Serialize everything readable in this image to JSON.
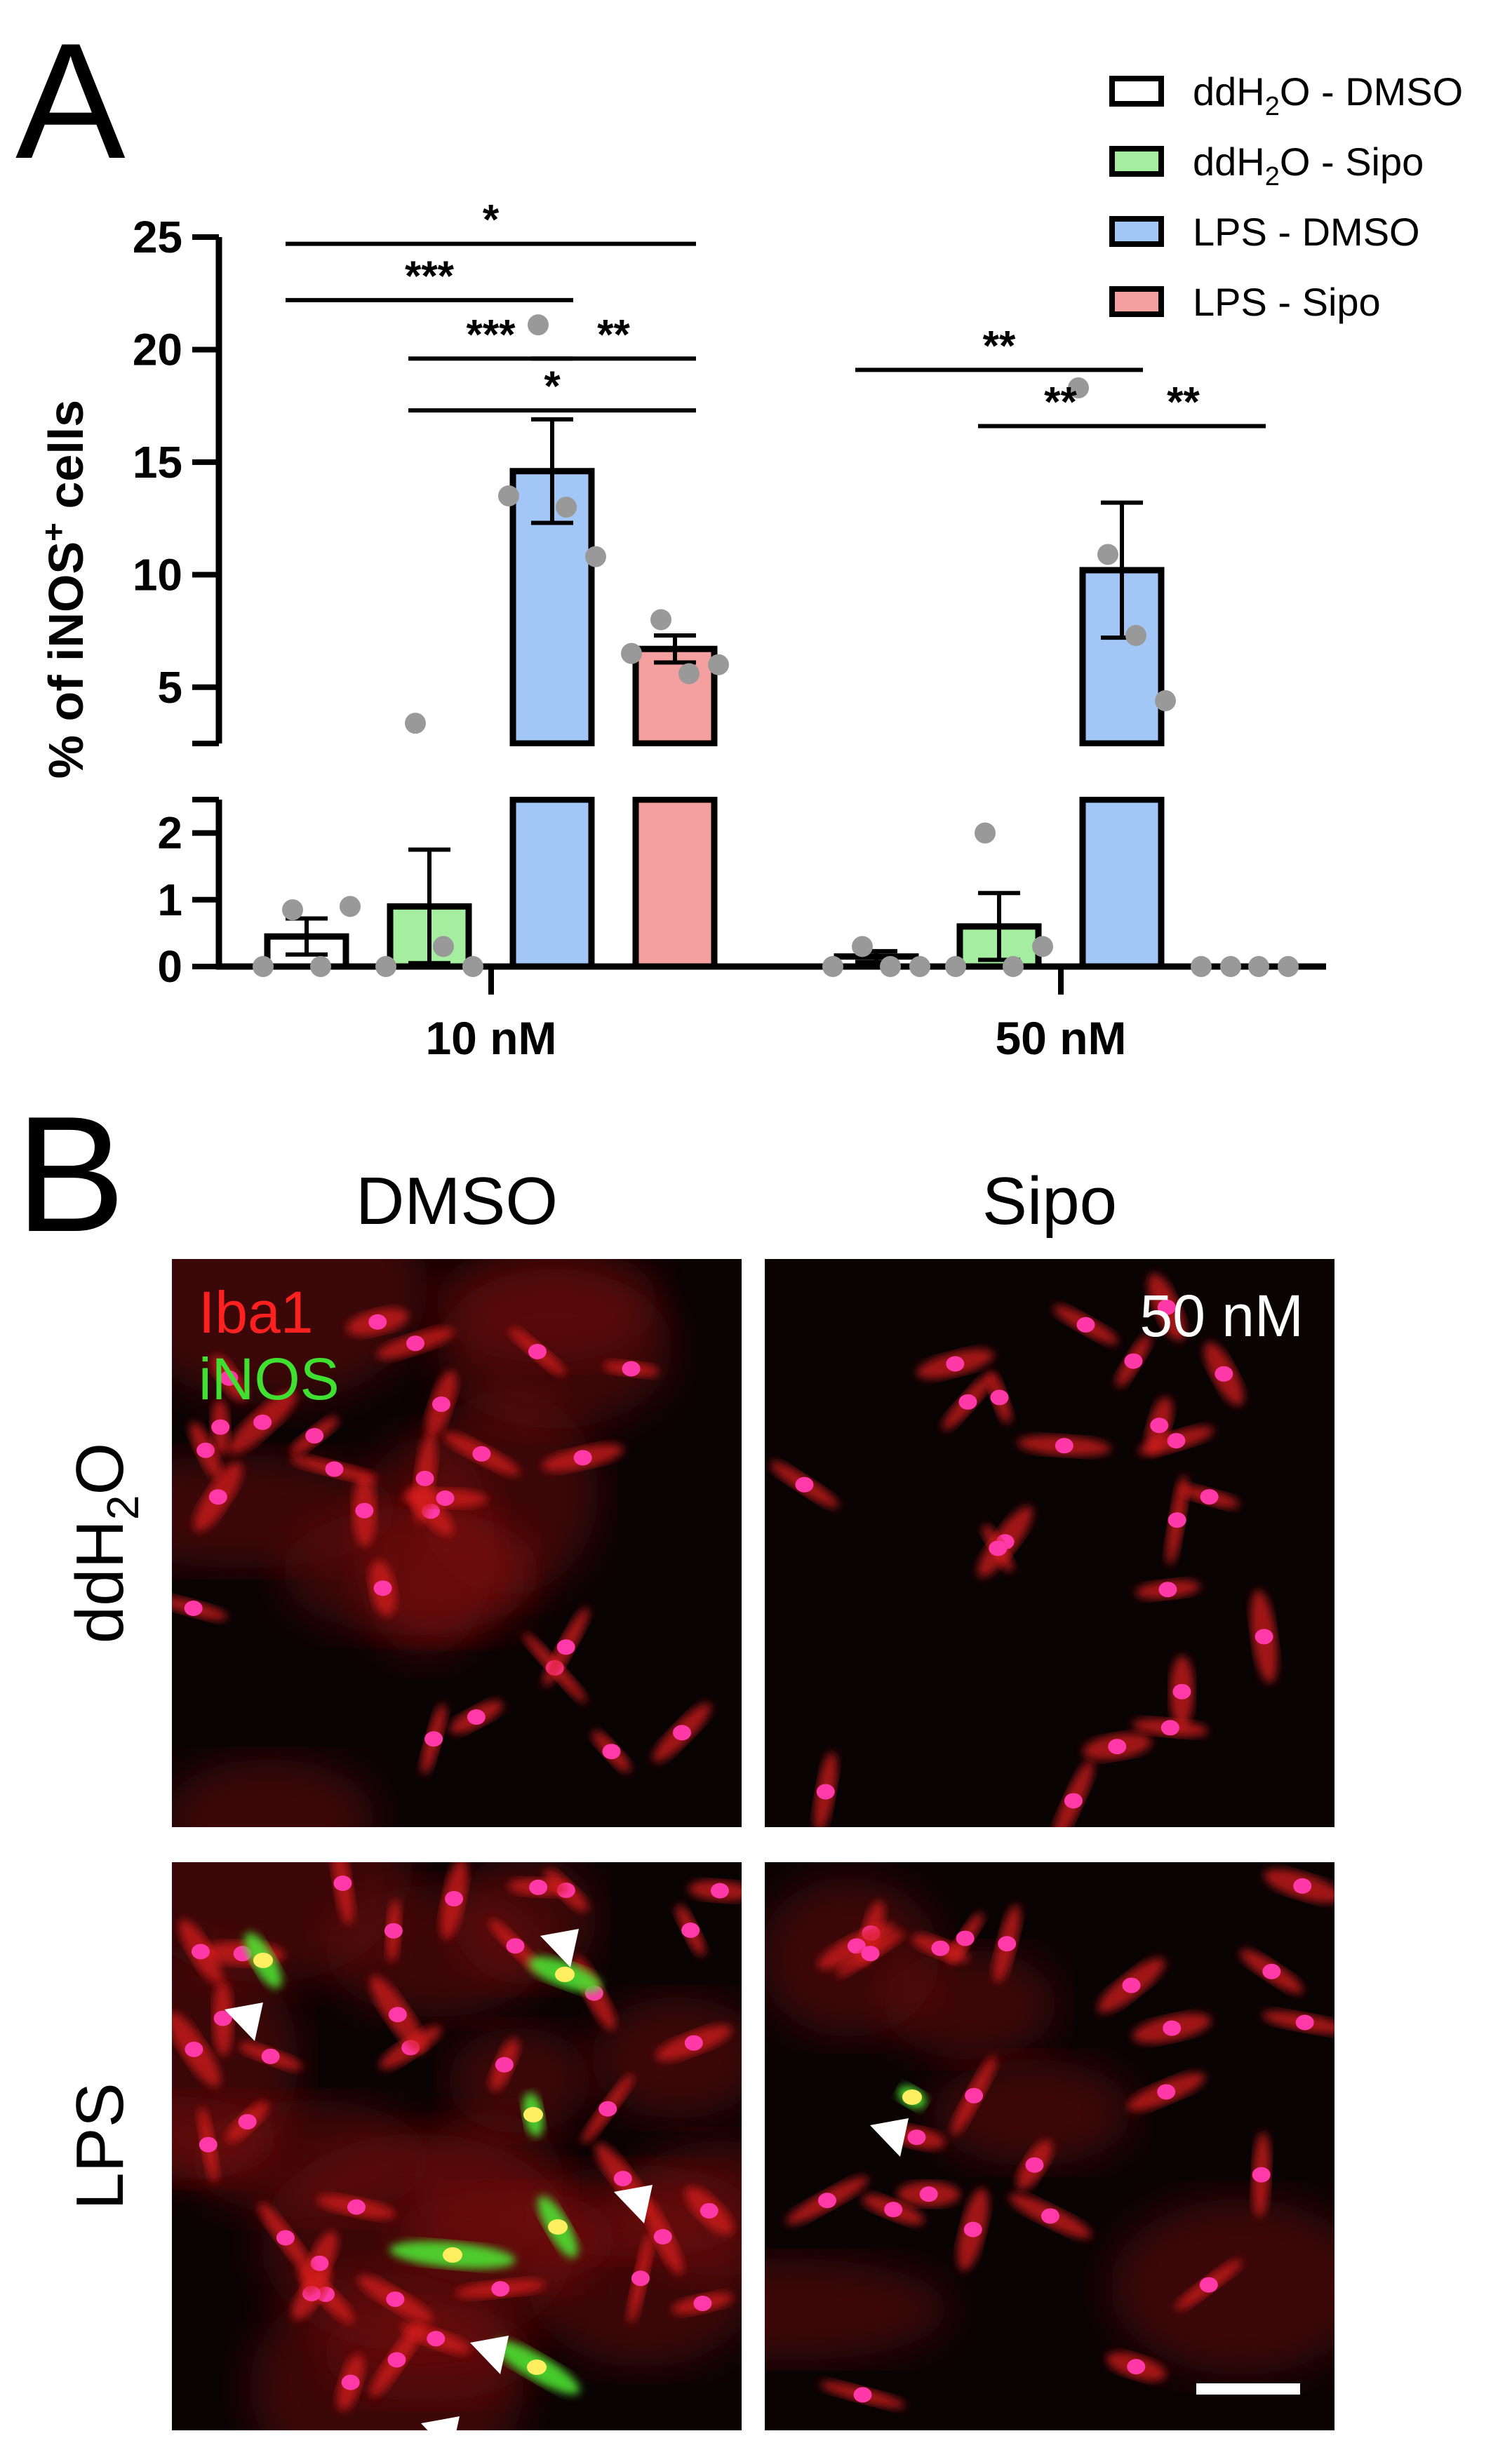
{
  "panels": {
    "a": "A",
    "b": "B"
  },
  "legend": [
    {
      "prefix": "ddH",
      "sub": "2",
      "suffix": "O - DMSO",
      "color": "#ffffff"
    },
    {
      "prefix": "ddH",
      "sub": "2",
      "suffix": "O - Sipo",
      "color": "#a5eea0"
    },
    {
      "prefix": "LPS - DMSO",
      "sub": "",
      "suffix": "",
      "color": "#a2c6f5"
    },
    {
      "prefix": "LPS - Sipo",
      "sub": "",
      "suffix": "",
      "color": "#f5a0a0"
    }
  ],
  "chart_data": {
    "type": "bar",
    "categories": [
      "10 nM",
      "50 nM"
    ],
    "ylabel": {
      "main": "% of iNOS",
      "sup": "+",
      "tail": " cells"
    },
    "y_axis": "broken",
    "y_segments": [
      {
        "range": [
          0,
          2.5
        ],
        "ticks": [
          0,
          1,
          2
        ],
        "tick_labels": [
          "0",
          "1",
          "2"
        ]
      },
      {
        "range": [
          2.5,
          25
        ],
        "ticks": [
          5,
          10,
          15,
          20,
          25
        ],
        "tick_labels": [
          "5",
          "10",
          "15",
          "20",
          "25"
        ]
      }
    ],
    "series": [
      {
        "name": "ddH2O - DMSO",
        "values": [
          0.45,
          0.15
        ],
        "sem": [
          0.27,
          0.08
        ],
        "points": [
          [
            0,
            0.85,
            0,
            0.9
          ],
          [
            0,
            0.3,
            0,
            0
          ]
        ]
      },
      {
        "name": "ddH2O - Sipo",
        "values": [
          0.9,
          0.6
        ],
        "sem": [
          0.85,
          0.5
        ],
        "points": [
          [
            0,
            3.4,
            0.3,
            0
          ],
          [
            0,
            2.0,
            0,
            0.3
          ]
        ]
      },
      {
        "name": "LPS - DMSO",
        "values": [
          14.6,
          10.2
        ],
        "sem": [
          2.3,
          3.0
        ],
        "points": [
          [
            13.5,
            21.1,
            13.0,
            10.8
          ],
          [
            18.3,
            10.9,
            7.3,
            4.4
          ]
        ]
      },
      {
        "name": "LPS - Sipo",
        "values": [
          6.7,
          0.0
        ],
        "sem": [
          0.6,
          0.0
        ],
        "points": [
          [
            6.5,
            8.0,
            5.6,
            6.0
          ],
          [
            0,
            0,
            0,
            0
          ]
        ]
      }
    ],
    "significance": [
      {
        "group": 0,
        "from": 0,
        "to": 3,
        "y": 24.7,
        "label": "*"
      },
      {
        "group": 0,
        "from": 0,
        "to": 2,
        "y": 22.2,
        "label": "***"
      },
      {
        "group": 0,
        "from": 1,
        "to": 2,
        "y": 19.6,
        "label": "***"
      },
      {
        "group": 0,
        "from": 2,
        "to": 3,
        "y": 19.6,
        "label": "**"
      },
      {
        "group": 0,
        "from": 1,
        "to": 3,
        "y": 17.3,
        "label": "*"
      },
      {
        "group": 1,
        "from": 0,
        "to": 2,
        "y": 19.1,
        "label": "**"
      },
      {
        "group": 1,
        "from": 1,
        "to": 2,
        "y": 16.6,
        "label": "**"
      },
      {
        "group": 1,
        "from": 2,
        "to": 3,
        "y": 16.6,
        "label": "**"
      }
    ]
  },
  "micrographs": {
    "columns": [
      "DMSO",
      "Sipo"
    ],
    "rows": [
      {
        "prefix": "ddH",
        "sub": "2",
        "suffix": "O"
      },
      {
        "prefix": "LPS",
        "sub": "",
        "suffix": ""
      }
    ],
    "stain_labels": [
      {
        "text": "Iba1",
        "color": "#ff2020"
      },
      {
        "text": "iNOS",
        "color": "#40e030"
      }
    ],
    "concentration": "50 nM",
    "scale_bar": true
  }
}
